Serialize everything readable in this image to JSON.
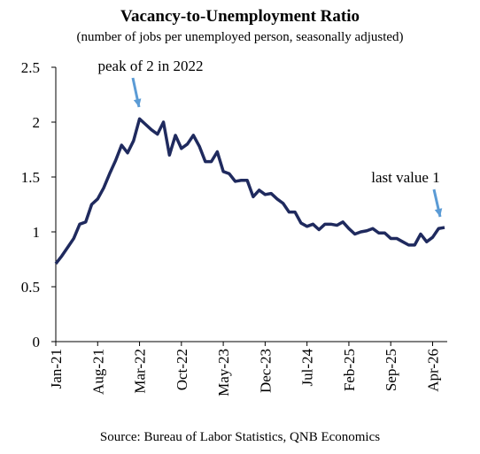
{
  "chart_data": {
    "type": "line",
    "title": "Vacancy-to-Unemployment Ratio",
    "subtitle": "(number of jobs per unemployed person, seasonally adjusted)",
    "source": "Source: Bureau of Labor Statistics, QNB Economics",
    "annotations": [
      "peak of 2 in 2022",
      "last value 1"
    ],
    "categories": [
      "Jan-21",
      null,
      null,
      null,
      null,
      null,
      null,
      "Aug-21",
      null,
      null,
      null,
      null,
      null,
      null,
      "Mar-22",
      null,
      null,
      null,
      null,
      null,
      null,
      "Oct-22",
      null,
      null,
      null,
      null,
      null,
      null,
      "May-23",
      null,
      null,
      null,
      null,
      null,
      null,
      "Dec-23",
      null,
      null,
      null,
      null,
      null,
      null,
      "Jul-24",
      null,
      null,
      null,
      null,
      null,
      null,
      "Feb-25",
      null,
      null,
      null,
      null,
      null,
      null,
      "Sep-25",
      null,
      null,
      null,
      null,
      null,
      null,
      "Apr-26",
      null,
      null
    ],
    "values": [
      0.71,
      0.78,
      0.86,
      0.94,
      1.07,
      1.09,
      1.25,
      1.3,
      1.4,
      1.53,
      1.65,
      1.79,
      1.72,
      1.83,
      2.03,
      1.98,
      1.93,
      1.89,
      2.0,
      1.7,
      1.88,
      1.76,
      1.8,
      1.88,
      1.78,
      1.64,
      1.64,
      1.73,
      1.55,
      1.53,
      1.46,
      1.47,
      1.47,
      1.32,
      1.38,
      1.34,
      1.35,
      1.3,
      1.26,
      1.18,
      1.18,
      1.08,
      1.05,
      1.07,
      1.02,
      1.07,
      1.07,
      1.06,
      1.09,
      1.03,
      0.98,
      1.0,
      1.01,
      1.03,
      0.99,
      0.99,
      0.94,
      0.94,
      0.91,
      0.88,
      0.88,
      0.98,
      0.91,
      0.95,
      1.03,
      1.04
    ],
    "color": "#1f2a5e",
    "annotation_color": "#5b9bd5",
    "ylim": [
      0,
      2.5
    ],
    "yticks": [
      0,
      0.5,
      1,
      1.5,
      2,
      2.5
    ],
    "grid": false
  }
}
